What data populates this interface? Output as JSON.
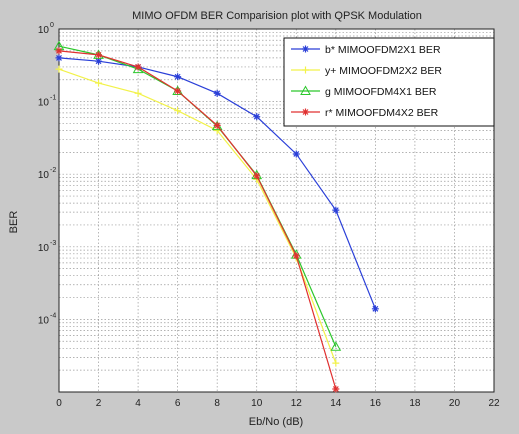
{
  "chart_data": {
    "type": "line",
    "title": "MIMO OFDM BER Comparision plot with QPSK Modulation",
    "xlabel": "Eb/No (dB)",
    "ylabel": "BER",
    "yscale": "log",
    "xlim": [
      0,
      22
    ],
    "ylim": [
      1e-05,
      1
    ],
    "x_ticks": [
      "0",
      "2",
      "4",
      "6",
      "8",
      "10",
      "12",
      "14",
      "16",
      "18",
      "20",
      "22"
    ],
    "y_ticks": [
      {
        "base": "10",
        "exp": "0"
      },
      {
        "base": "10",
        "exp": "-1"
      },
      {
        "base": "10",
        "exp": "-2"
      },
      {
        "base": "10",
        "exp": "-3"
      },
      {
        "base": "10",
        "exp": "-4"
      }
    ],
    "grid": true,
    "legend_position": "top-right",
    "series": [
      {
        "name": "b* MIMOOFDM2X1 BER",
        "color": "#2a3fd8",
        "marker": "star",
        "x": [
          0,
          2,
          4,
          6,
          8,
          10,
          12,
          14,
          16
        ],
        "y": [
          0.4,
          0.36,
          0.3,
          0.22,
          0.13,
          0.062,
          0.019,
          0.0032,
          0.00014
        ]
      },
      {
        "name": "y+ MIMOOFDM2X2 BER",
        "color": "#f2f24a",
        "marker": "plus",
        "x": [
          0,
          2,
          4,
          6,
          8,
          10,
          12,
          14
        ],
        "y": [
          0.28,
          0.18,
          0.13,
          0.075,
          0.04,
          0.0085,
          0.0007,
          2.5e-05
        ]
      },
      {
        "name": "g MIMOOFDM4X1 BER",
        "color": "#2cc72c",
        "marker": "triangle",
        "x": [
          0,
          2,
          4,
          6,
          8,
          10,
          12,
          14
        ],
        "y": [
          0.58,
          0.44,
          0.28,
          0.14,
          0.046,
          0.0097,
          0.00078,
          4.2e-05
        ]
      },
      {
        "name": "r* MIMOOFDM4X2 BER",
        "color": "#e03030",
        "marker": "star",
        "x": [
          0,
          2,
          4,
          6,
          8,
          10,
          12,
          14
        ],
        "y": [
          0.5,
          0.44,
          0.3,
          0.14,
          0.047,
          0.0095,
          0.00075,
          1.1e-05
        ]
      }
    ]
  }
}
